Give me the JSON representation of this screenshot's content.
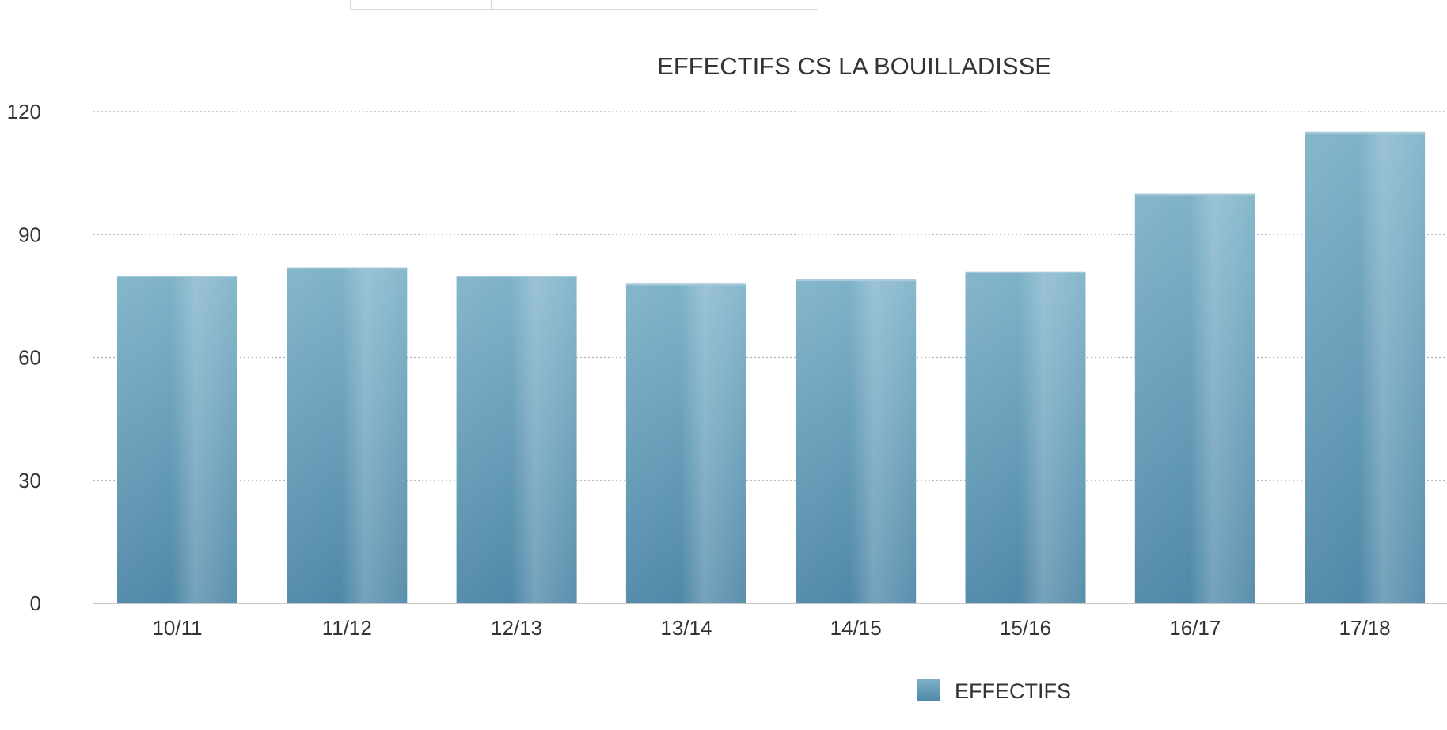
{
  "chart_data": {
    "type": "bar",
    "title": "EFFECTIFS CS LA BOUILLADISSE",
    "xlabel": "",
    "ylabel": "",
    "categories": [
      "10/11",
      "11/12",
      "12/13",
      "13/14",
      "14/15",
      "15/16",
      "16/17",
      "17/18"
    ],
    "series": [
      {
        "name": "EFFECTIFS",
        "values": [
          80,
          82,
          80,
          78,
          79,
          81,
          100,
          115
        ]
      }
    ],
    "ylim": [
      0,
      120
    ],
    "yticks": [
      "0",
      "30",
      "60",
      "90",
      "120"
    ],
    "grid": true,
    "legend_position": "bottom",
    "colors": {
      "bar_top": "#7fb3c9",
      "bar_bottom": "#4f88a8",
      "bar_highlight": "#a9cbd9",
      "grid": "#b3b3b3",
      "axis": "#b3b3b3",
      "text": "#333333"
    }
  }
}
